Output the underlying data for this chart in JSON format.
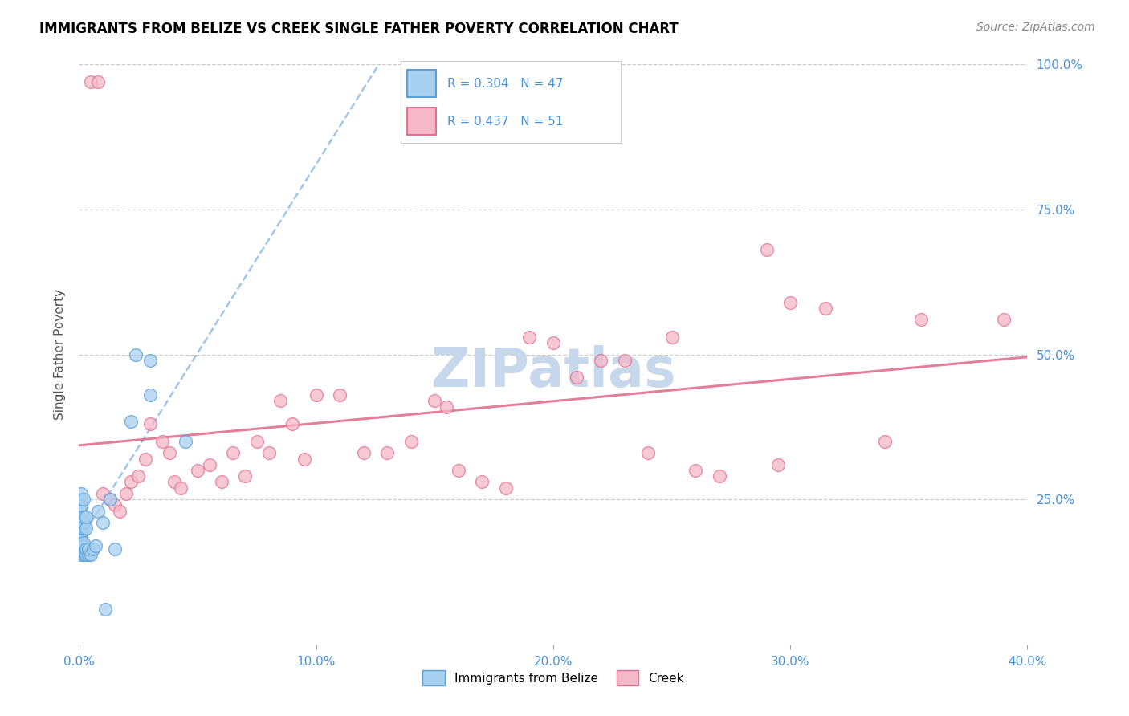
{
  "title": "IMMIGRANTS FROM BELIZE VS CREEK SINGLE FATHER POVERTY CORRELATION CHART",
  "source": "Source: ZipAtlas.com",
  "ylabel": "Single Father Poverty",
  "legend_r_blue": "R = 0.304",
  "legend_n_blue": "N = 47",
  "legend_r_pink": "R = 0.437",
  "legend_n_pink": "N = 51",
  "blue_fill": "#a8d0f0",
  "blue_edge": "#5a9fd4",
  "pink_fill": "#f5b8c8",
  "pink_edge": "#e07090",
  "blue_line_color": "#90bce8",
  "pink_line_color": "#e07090",
  "watermark_color": "#c8d8ec",
  "xlim": [
    0.0,
    0.4
  ],
  "ylim": [
    0.0,
    1.0
  ],
  "xticks": [
    0.0,
    0.1,
    0.2,
    0.3,
    0.4
  ],
  "xticklabels": [
    "0.0%",
    "10.0%",
    "20.0%",
    "30.0%",
    "40.0%"
  ],
  "yticks": [
    0.25,
    0.5,
    0.75,
    1.0
  ],
  "yticklabels": [
    "25.0%",
    "50.0%",
    "75.0%",
    "100.0%"
  ],
  "tick_color": "#4a90d9",
  "grid_color": "#cccccc",
  "legend_bottom_labels": [
    "Immigrants from Belize",
    "Creek"
  ],
  "belize_x": [
    0.001,
    0.001,
    0.001,
    0.001,
    0.001,
    0.001,
    0.001,
    0.001,
    0.001,
    0.001,
    0.001,
    0.001,
    0.001,
    0.001,
    0.001,
    0.001,
    0.001,
    0.001,
    0.001,
    0.001,
    0.002,
    0.002,
    0.002,
    0.002,
    0.002,
    0.002,
    0.002,
    0.002,
    0.003,
    0.003,
    0.003,
    0.003,
    0.004,
    0.004,
    0.005,
    0.006,
    0.007,
    0.008,
    0.01,
    0.011,
    0.013,
    0.015,
    0.022,
    0.024,
    0.03,
    0.03,
    0.045
  ],
  "belize_y": [
    0.155,
    0.16,
    0.165,
    0.17,
    0.175,
    0.175,
    0.18,
    0.185,
    0.19,
    0.195,
    0.2,
    0.205,
    0.21,
    0.215,
    0.22,
    0.225,
    0.23,
    0.24,
    0.25,
    0.26,
    0.155,
    0.16,
    0.17,
    0.175,
    0.2,
    0.21,
    0.22,
    0.25,
    0.155,
    0.165,
    0.2,
    0.22,
    0.155,
    0.165,
    0.155,
    0.165,
    0.17,
    0.23,
    0.21,
    0.06,
    0.25,
    0.165,
    0.385,
    0.5,
    0.43,
    0.49,
    0.35
  ],
  "creek_x": [
    0.005,
    0.008,
    0.01,
    0.013,
    0.015,
    0.017,
    0.02,
    0.022,
    0.025,
    0.028,
    0.03,
    0.035,
    0.038,
    0.04,
    0.043,
    0.05,
    0.055,
    0.06,
    0.065,
    0.07,
    0.075,
    0.08,
    0.085,
    0.09,
    0.095,
    0.1,
    0.11,
    0.12,
    0.13,
    0.14,
    0.15,
    0.155,
    0.16,
    0.17,
    0.18,
    0.19,
    0.2,
    0.21,
    0.22,
    0.23,
    0.24,
    0.25,
    0.26,
    0.27,
    0.29,
    0.295,
    0.3,
    0.315,
    0.34,
    0.355,
    0.39
  ],
  "creek_y": [
    0.97,
    0.97,
    0.26,
    0.25,
    0.24,
    0.23,
    0.26,
    0.28,
    0.29,
    0.32,
    0.38,
    0.35,
    0.33,
    0.28,
    0.27,
    0.3,
    0.31,
    0.28,
    0.33,
    0.29,
    0.35,
    0.33,
    0.42,
    0.38,
    0.32,
    0.43,
    0.43,
    0.33,
    0.33,
    0.35,
    0.42,
    0.41,
    0.3,
    0.28,
    0.27,
    0.53,
    0.52,
    0.46,
    0.49,
    0.49,
    0.33,
    0.53,
    0.3,
    0.29,
    0.68,
    0.31,
    0.59,
    0.58,
    0.35,
    0.56,
    0.56
  ]
}
